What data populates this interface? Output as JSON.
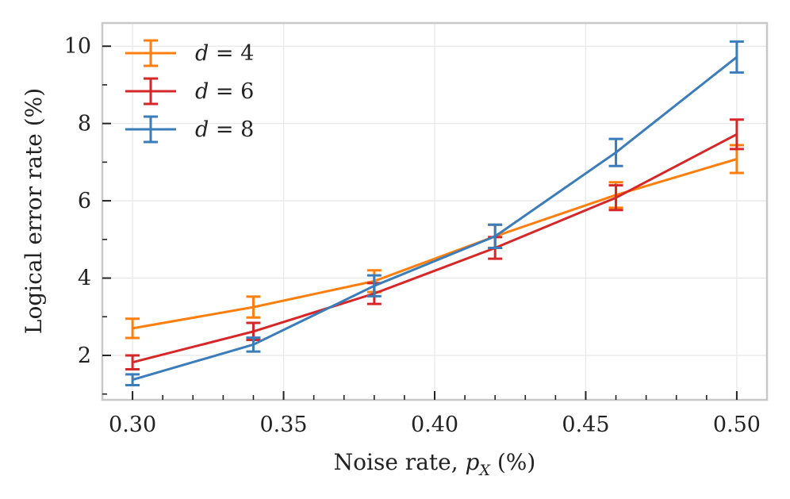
{
  "chart_data": {
    "type": "line",
    "xlabel": "Noise rate, p_X (%)",
    "xlabel_parts": {
      "prefix": "Noise rate, ",
      "symbol": "p",
      "subscript": "X",
      "suffix": " (%)"
    },
    "ylabel": "Logical error rate (%)",
    "x": [
      0.3,
      0.34,
      0.38,
      0.42,
      0.46,
      0.5
    ],
    "xlim": [
      0.29,
      0.51
    ],
    "ylim": [
      0.85,
      10.6
    ],
    "xticks": [
      "0.30",
      "0.35",
      "0.40",
      "0.45",
      "0.50"
    ],
    "xtick_values": [
      0.3,
      0.35,
      0.4,
      0.45,
      0.5
    ],
    "yticks": [
      "2",
      "4",
      "6",
      "8",
      "10"
    ],
    "ytick_values": [
      2,
      4,
      6,
      8,
      10
    ],
    "grid": true,
    "legend_position": "top-left",
    "series": [
      {
        "name": "d = 4",
        "var": "d",
        "eq": "= 4",
        "color": "#ff7f0e",
        "values": [
          2.7,
          3.25,
          3.92,
          5.08,
          6.15,
          7.08
        ],
        "errors": [
          0.25,
          0.27,
          0.28,
          0.3,
          0.33,
          0.36
        ]
      },
      {
        "name": "d = 6",
        "var": "d",
        "eq": "= 6",
        "color": "#d62728",
        "values": [
          1.82,
          2.62,
          3.6,
          4.78,
          6.08,
          7.72
        ],
        "errors": [
          0.18,
          0.22,
          0.27,
          0.28,
          0.32,
          0.38
        ]
      },
      {
        "name": "d = 8",
        "var": "d",
        "eq": "= 8",
        "color": "#3a7dba",
        "values": [
          1.37,
          2.28,
          3.8,
          5.08,
          7.25,
          9.72
        ],
        "errors": [
          0.14,
          0.18,
          0.27,
          0.3,
          0.35,
          0.4
        ]
      }
    ]
  }
}
